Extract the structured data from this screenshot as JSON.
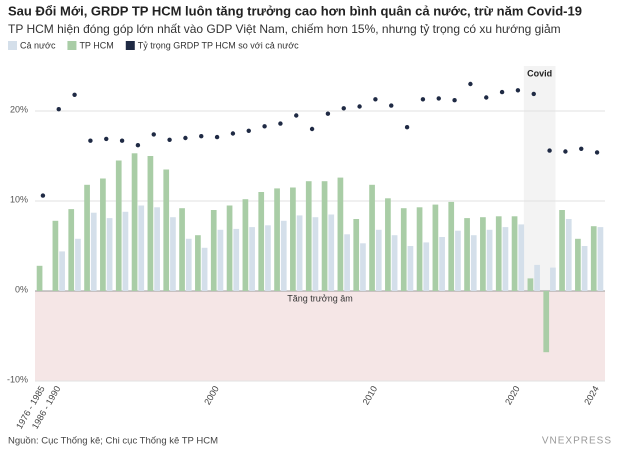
{
  "chart_data": {
    "type": "bar",
    "title": "Sau Đổi Mới, GRDP TP HCM luôn tăng trưởng cao hơn bình quân cả nước, trừ năm Covid-19",
    "subtitle": "TP HCM hiện đóng góp lớn nhất vào GDP Việt Nam, chiếm hơn 15%, nhưng tỷ trọng có xu hướng giảm",
    "categories": [
      "1976 - 1985",
      "1986 - 1990",
      null,
      null,
      null,
      null,
      null,
      null,
      null,
      null,
      null,
      "2000",
      null,
      null,
      null,
      null,
      null,
      null,
      null,
      null,
      null,
      "2010",
      null,
      null,
      null,
      null,
      null,
      null,
      null,
      null,
      "2020",
      null,
      null,
      null,
      null,
      "2024"
    ],
    "series": [
      {
        "name": "Cả nước",
        "type": "bar",
        "color": "#d4dfea",
        "values": [
          null,
          4.4,
          5.8,
          8.7,
          8.1,
          8.8,
          9.5,
          9.3,
          8.2,
          5.8,
          4.8,
          6.8,
          6.9,
          7.1,
          7.3,
          7.8,
          8.4,
          8.2,
          8.5,
          6.3,
          5.3,
          6.8,
          6.2,
          5.0,
          5.4,
          6.0,
          6.7,
          6.2,
          6.8,
          7.1,
          7.4,
          2.9,
          2.6,
          8.0,
          5.0,
          7.1
        ]
      },
      {
        "name": "TP HCM",
        "type": "bar",
        "color": "#a9cda6",
        "values": [
          2.8,
          7.8,
          9.1,
          11.8,
          12.5,
          14.5,
          15.3,
          15.0,
          13.5,
          9.2,
          6.2,
          9.0,
          9.5,
          10.2,
          11.0,
          11.4,
          11.5,
          12.2,
          12.2,
          12.6,
          8.0,
          11.8,
          10.3,
          9.2,
          9.3,
          9.6,
          9.9,
          8.1,
          8.2,
          8.3,
          8.3,
          1.4,
          -6.8,
          9.0,
          5.8,
          7.2
        ]
      },
      {
        "name": "Tỷ trọng GRDP TP HCM so với cả nước",
        "type": "dot",
        "color": "#1f2a44",
        "values": [
          10.6,
          20.2,
          21.8,
          16.7,
          16.9,
          16.7,
          16.2,
          17.4,
          16.8,
          17.0,
          17.2,
          17.1,
          17.5,
          17.8,
          18.3,
          18.6,
          19.5,
          18.0,
          19.7,
          20.3,
          20.5,
          21.3,
          20.6,
          18.2,
          21.3,
          21.4,
          21.2,
          23.0,
          21.5,
          22.1,
          22.3,
          21.9,
          15.6,
          15.5,
          15.8,
          15.4
        ]
      }
    ],
    "ylim": [
      -10,
      25
    ],
    "yticks": [
      {
        "value": -10,
        "label": "-10%"
      },
      {
        "value": 0,
        "label": "0%"
      },
      {
        "value": 10,
        "label": "10%"
      },
      {
        "value": 20,
        "label": "20%"
      }
    ],
    "grid": true,
    "covid_label": "Covid",
    "negative_label": "Tăng trưởng âm",
    "source": "Nguồn: Cục Thống kê; Chi cục Thống kê TP HCM",
    "logo": "VNEXPRESS"
  }
}
